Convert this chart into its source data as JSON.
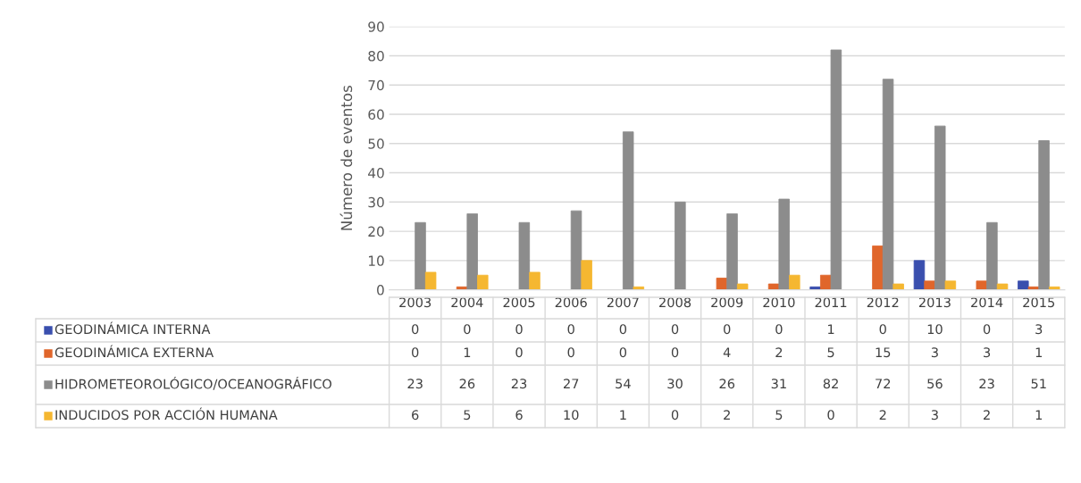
{
  "chart_data": {
    "type": "bar",
    "ylabel": "Número de eventos",
    "categories": [
      "2003",
      "2004",
      "2005",
      "2006",
      "2007",
      "2008",
      "2009",
      "2010",
      "2011",
      "2012",
      "2013",
      "2014",
      "2015"
    ],
    "series": [
      {
        "name": "GEODINÁMICA INTERNA",
        "color": "#3a4fae",
        "values": [
          0,
          0,
          0,
          0,
          0,
          0,
          0,
          0,
          1,
          0,
          10,
          0,
          3
        ]
      },
      {
        "name": "GEODINÁMICA EXTERNA",
        "color": "#e0662b",
        "values": [
          0,
          1,
          0,
          0,
          0,
          0,
          4,
          2,
          5,
          15,
          3,
          3,
          1
        ]
      },
      {
        "name": "HIDROMETEOROLÓGICO/OCEANOGRÁFICO",
        "color": "#8c8c8c",
        "values": [
          23,
          26,
          23,
          27,
          54,
          30,
          26,
          31,
          82,
          72,
          56,
          23,
          51
        ]
      },
      {
        "name": "INDUCIDOS POR ACCIÓN HUMANA",
        "color": "#f5b731",
        "values": [
          6,
          5,
          6,
          10,
          1,
          0,
          2,
          5,
          0,
          2,
          3,
          2,
          1
        ]
      }
    ],
    "ylim": [
      0,
      90
    ],
    "yticks": [
      0,
      10,
      20,
      30,
      40,
      50,
      60,
      70,
      80,
      90
    ],
    "grid": "y",
    "data_labels": true,
    "legend": "bottom"
  }
}
